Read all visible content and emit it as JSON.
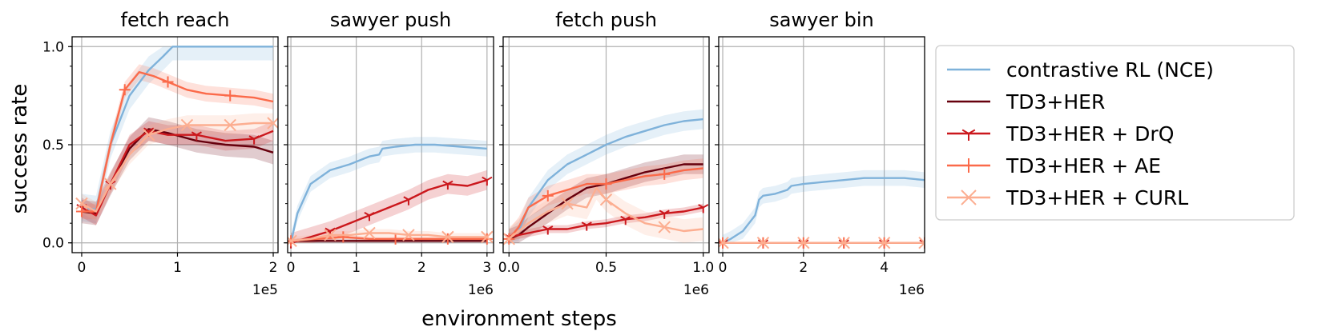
{
  "figure": {
    "ylabel": "success rate",
    "xlabel": "environment steps"
  },
  "legend": {
    "placement": "right",
    "entries": [
      {
        "label": "contrastive RL (NCE)",
        "color": "#7fb2da",
        "marker": "none"
      },
      {
        "label": "TD3+HER",
        "color": "#67000d",
        "marker": "none"
      },
      {
        "label": "TD3+HER + DrQ",
        "color": "#cb181d",
        "marker": "tri_down"
      },
      {
        "label": "TD3+HER + AE",
        "color": "#fb6a4a",
        "marker": "plus"
      },
      {
        "label": "TD3+HER + CURL",
        "color": "#fcae91",
        "marker": "x"
      }
    ]
  },
  "chart_data": [
    {
      "type": "line",
      "title": "fetch reach",
      "xlim": [
        -0.1,
        2.05
      ],
      "ylim": [
        -0.05,
        1.05
      ],
      "xticks": [
        0,
        1,
        2
      ],
      "yticks": [
        0.0,
        0.5,
        1.0
      ],
      "ytick_labels": [
        "0.0",
        "0.5",
        "1.0"
      ],
      "x_multiplier": "1e5",
      "grid": true,
      "series": [
        {
          "name": "contrastive RL (NCE)",
          "color": "#7fb2da",
          "marker": "none",
          "x": [
            0,
            0.15,
            0.3,
            0.5,
            0.7,
            0.85,
            0.95,
            1.0,
            1.5,
            2.0
          ],
          "y": [
            0.18,
            0.17,
            0.5,
            0.75,
            0.88,
            0.95,
            1.0,
            1.0,
            1.0,
            1.0
          ],
          "band": 0.07
        },
        {
          "name": "TD3+HER",
          "color": "#67000d",
          "marker": "none",
          "x": [
            0,
            0.15,
            0.3,
            0.5,
            0.7,
            0.9,
            1.2,
            1.5,
            1.8,
            2.0
          ],
          "y": [
            0.16,
            0.15,
            0.3,
            0.48,
            0.58,
            0.56,
            0.52,
            0.5,
            0.49,
            0.46
          ],
          "band": 0.06
        },
        {
          "name": "TD3+HER + DrQ",
          "color": "#cb181d",
          "marker": "tri_down",
          "x": [
            0,
            0.15,
            0.3,
            0.5,
            0.7,
            0.9,
            1.2,
            1.5,
            1.8,
            2.0
          ],
          "y": [
            0.18,
            0.14,
            0.3,
            0.5,
            0.57,
            0.55,
            0.55,
            0.52,
            0.53,
            0.57
          ],
          "band": 0.05
        },
        {
          "name": "TD3+HER + AE",
          "color": "#fb6a4a",
          "marker": "plus",
          "x": [
            0,
            0.15,
            0.3,
            0.45,
            0.6,
            0.75,
            0.9,
            1.1,
            1.3,
            1.55,
            1.8,
            2.0
          ],
          "y": [
            0.16,
            0.16,
            0.5,
            0.78,
            0.87,
            0.85,
            0.82,
            0.78,
            0.76,
            0.75,
            0.74,
            0.72
          ],
          "band": 0.04
        },
        {
          "name": "TD3+HER + CURL",
          "color": "#fcae91",
          "marker": "x",
          "x": [
            0,
            0.15,
            0.3,
            0.5,
            0.7,
            0.9,
            1.1,
            1.3,
            1.55,
            1.8,
            2.0
          ],
          "y": [
            0.2,
            0.16,
            0.3,
            0.45,
            0.55,
            0.58,
            0.6,
            0.6,
            0.6,
            0.61,
            0.61
          ],
          "band": 0.05
        }
      ]
    },
    {
      "type": "line",
      "title": "sawyer push",
      "xlim": [
        -0.05,
        3.1
      ],
      "ylim": [
        -0.05,
        1.05
      ],
      "xticks": [
        0,
        1,
        2,
        3
      ],
      "yticks": [
        0.0,
        0.5,
        1.0
      ],
      "ytick_labels": [
        "",
        "",
        ""
      ],
      "x_multiplier": "1e6",
      "grid": true,
      "series": [
        {
          "name": "contrastive RL (NCE)",
          "color": "#7fb2da",
          "marker": "none",
          "x": [
            0,
            0.1,
            0.3,
            0.6,
            0.9,
            1.05,
            1.2,
            1.35,
            1.4,
            1.6,
            1.9,
            2.2,
            2.6,
            3.0
          ],
          "y": [
            0.0,
            0.15,
            0.3,
            0.37,
            0.4,
            0.42,
            0.44,
            0.45,
            0.48,
            0.49,
            0.5,
            0.5,
            0.49,
            0.48
          ],
          "band": 0.04
        },
        {
          "name": "TD3+HER",
          "color": "#67000d",
          "marker": "none",
          "x": [
            0,
            0.1,
            0.5,
            1.0,
            1.5,
            2.0,
            2.5,
            3.0
          ],
          "y": [
            0.0,
            0.01,
            0.01,
            0.01,
            0.01,
            0.01,
            0.01,
            0.01
          ],
          "band": 0.01
        },
        {
          "name": "TD3+HER + DrQ",
          "color": "#cb181d",
          "marker": "tri_down",
          "x": [
            0,
            0.3,
            0.6,
            0.9,
            1.2,
            1.5,
            1.8,
            2.1,
            2.4,
            2.7,
            3.0
          ],
          "y": [
            0.0,
            0.03,
            0.06,
            0.1,
            0.14,
            0.18,
            0.22,
            0.27,
            0.3,
            0.29,
            0.32
          ],
          "band": 0.05
        },
        {
          "name": "TD3+HER + AE",
          "color": "#fb6a4a",
          "marker": "plus",
          "x": [
            0,
            0.4,
            0.8,
            1.2,
            1.6,
            2.0,
            2.4,
            2.8,
            3.0
          ],
          "y": [
            0.01,
            0.02,
            0.03,
            0.02,
            0.02,
            0.02,
            0.02,
            0.02,
            0.02
          ],
          "band": 0.01
        },
        {
          "name": "TD3+HER + CURL",
          "color": "#fcae91",
          "marker": "x",
          "x": [
            0,
            0.3,
            0.6,
            0.9,
            1.2,
            1.5,
            1.8,
            2.1,
            2.4,
            2.7,
            3.0
          ],
          "y": [
            0.01,
            0.02,
            0.04,
            0.04,
            0.05,
            0.05,
            0.04,
            0.04,
            0.03,
            0.03,
            0.03
          ],
          "band": 0.02
        }
      ]
    },
    {
      "type": "line",
      "title": "fetch push",
      "xlim": [
        -0.03,
        1.03
      ],
      "ylim": [
        -0.05,
        1.05
      ],
      "xticks": [
        0.0,
        0.5,
        1.0
      ],
      "xtick_labels": [
        "0.0",
        "0.5",
        "1.0"
      ],
      "yticks": [
        0.0,
        0.5,
        1.0
      ],
      "ytick_labels": [
        "",
        "",
        ""
      ],
      "x_multiplier": "1e6",
      "grid": true,
      "series": [
        {
          "name": "contrastive RL (NCE)",
          "color": "#7fb2da",
          "marker": "none",
          "x": [
            0,
            0.05,
            0.1,
            0.2,
            0.3,
            0.4,
            0.5,
            0.6,
            0.7,
            0.8,
            0.9,
            1.0
          ],
          "y": [
            0.02,
            0.06,
            0.18,
            0.32,
            0.4,
            0.45,
            0.5,
            0.54,
            0.57,
            0.6,
            0.62,
            0.63
          ],
          "band": 0.05
        },
        {
          "name": "TD3+HER",
          "color": "#67000d",
          "marker": "none",
          "x": [
            0,
            0.05,
            0.1,
            0.2,
            0.3,
            0.4,
            0.5,
            0.6,
            0.7,
            0.8,
            0.9,
            1.0
          ],
          "y": [
            0.02,
            0.04,
            0.08,
            0.15,
            0.22,
            0.28,
            0.3,
            0.33,
            0.36,
            0.38,
            0.4,
            0.4
          ],
          "band": 0.05
        },
        {
          "name": "TD3+HER + DrQ",
          "color": "#cb181d",
          "marker": "tri_down",
          "x": [
            0,
            0.1,
            0.2,
            0.3,
            0.4,
            0.5,
            0.6,
            0.7,
            0.8,
            0.9,
            1.0
          ],
          "y": [
            0.03,
            0.05,
            0.07,
            0.07,
            0.09,
            0.1,
            0.12,
            0.13,
            0.15,
            0.16,
            0.18
          ],
          "band": 0.02
        },
        {
          "name": "TD3+HER + AE",
          "color": "#fb6a4a",
          "marker": "plus",
          "x": [
            0,
            0.05,
            0.1,
            0.2,
            0.3,
            0.4,
            0.5,
            0.6,
            0.7,
            0.8,
            0.9,
            1.0
          ],
          "y": [
            0.02,
            0.08,
            0.18,
            0.24,
            0.27,
            0.3,
            0.3,
            0.32,
            0.34,
            0.35,
            0.37,
            0.38
          ],
          "band": 0.05
        },
        {
          "name": "TD3+HER + CURL",
          "color": "#fcae91",
          "marker": "x",
          "x": [
            0,
            0.1,
            0.2,
            0.3,
            0.4,
            0.45,
            0.5,
            0.6,
            0.7,
            0.8,
            0.9,
            1.0
          ],
          "y": [
            0.02,
            0.1,
            0.16,
            0.2,
            0.18,
            0.28,
            0.22,
            0.15,
            0.1,
            0.08,
            0.06,
            0.07
          ],
          "band": 0.06
        }
      ]
    },
    {
      "type": "line",
      "title": "sawyer bin",
      "xlim": [
        -0.1,
        5.0
      ],
      "ylim": [
        -0.05,
        1.05
      ],
      "xticks": [
        0,
        2,
        4
      ],
      "yticks": [
        0.0,
        0.5,
        1.0
      ],
      "ytick_labels": [
        "",
        "",
        ""
      ],
      "x_multiplier": "1e6",
      "grid": true,
      "series": [
        {
          "name": "contrastive RL (NCE)",
          "color": "#7fb2da",
          "marker": "none",
          "x": [
            0,
            0.2,
            0.5,
            0.8,
            0.9,
            1.0,
            1.3,
            1.6,
            1.7,
            2.0,
            2.5,
            3.0,
            3.5,
            4.0,
            4.5,
            5.0
          ],
          "y": [
            0.0,
            0.02,
            0.06,
            0.14,
            0.22,
            0.24,
            0.25,
            0.27,
            0.29,
            0.3,
            0.31,
            0.32,
            0.33,
            0.33,
            0.33,
            0.32
          ],
          "band": 0.04
        },
        {
          "name": "TD3+HER",
          "color": "#67000d",
          "marker": "none",
          "x": [
            0,
            1.0,
            2.0,
            3.0,
            4.0,
            5.0
          ],
          "y": [
            0.0,
            0.0,
            0.0,
            0.0,
            0.0,
            0.0
          ],
          "band": 0.0
        },
        {
          "name": "TD3+HER + DrQ",
          "color": "#cb181d",
          "marker": "tri_down",
          "x": [
            0,
            1.0,
            2.0,
            3.0,
            4.0,
            5.0
          ],
          "y": [
            0.0,
            0.0,
            0.0,
            0.0,
            0.0,
            0.0
          ],
          "band": 0.0
        },
        {
          "name": "TD3+HER + AE",
          "color": "#fb6a4a",
          "marker": "plus",
          "x": [
            0,
            1.0,
            2.0,
            3.0,
            4.0,
            5.0
          ],
          "y": [
            0.0,
            0.0,
            0.0,
            0.0,
            0.0,
            0.0
          ],
          "band": 0.0
        },
        {
          "name": "TD3+HER + CURL",
          "color": "#fcae91",
          "marker": "x",
          "x": [
            0,
            1.0,
            2.0,
            3.0,
            4.0,
            5.0
          ],
          "y": [
            0.0,
            0.0,
            0.0,
            0.0,
            0.0,
            0.0
          ],
          "band": 0.0
        }
      ]
    }
  ]
}
